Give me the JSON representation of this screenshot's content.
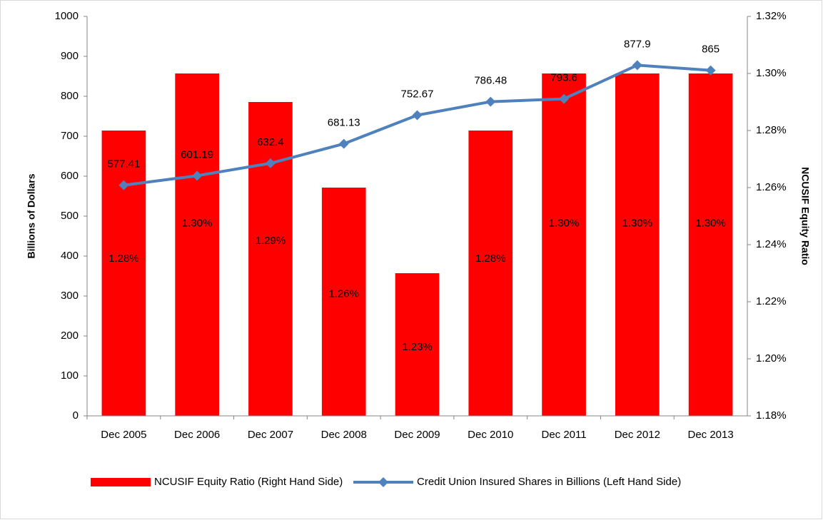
{
  "chart_data": {
    "type": "bar",
    "categories": [
      "Dec 2005",
      "Dec 2006",
      "Dec 2007",
      "Dec 2008",
      "Dec 2009",
      "Dec 2010",
      "Dec 2011",
      "Dec 2012",
      "Dec 2013"
    ],
    "series": [
      {
        "name": "NCUSIF Equity Ratio (Right Hand Side)",
        "type": "bar",
        "axis": "y2",
        "color": "#ff0000",
        "values": [
          1.28,
          1.3,
          1.29,
          1.26,
          1.23,
          1.28,
          1.3,
          1.3,
          1.3
        ],
        "value_labels": [
          "1.28%",
          "1.30%",
          "1.29%",
          "1.26%",
          "1.23%",
          "1.28%",
          "1.30%",
          "1.30%",
          "1.30%"
        ]
      },
      {
        "name": "Credit Union Insured Shares in Billions (Left Hand Side)",
        "type": "line",
        "axis": "y",
        "color": "#4f81bd",
        "values": [
          577.41,
          601.19,
          632.4,
          681.13,
          752.67,
          786.48,
          793.6,
          877.9,
          865
        ]
      }
    ],
    "ylabel": "Billions of Dollars",
    "y2label": "NCUSIF Equity Ratio",
    "ylim": [
      0,
      1000
    ],
    "yticks": [
      0,
      100,
      200,
      300,
      400,
      500,
      600,
      700,
      800,
      900,
      1000
    ],
    "y2lim": [
      1.18,
      1.32
    ],
    "y2ticks": [
      {
        "value": 1.18,
        "label": "1.18%"
      },
      {
        "value": 1.2,
        "label": "1.20%"
      },
      {
        "value": 1.22,
        "label": "1.22%"
      },
      {
        "value": 1.24,
        "label": "1.24%"
      },
      {
        "value": 1.26,
        "label": "1.26%"
      },
      {
        "value": 1.28,
        "label": "1.28%"
      },
      {
        "value": 1.3,
        "label": "1.30%"
      },
      {
        "value": 1.32,
        "label": "1.32%"
      }
    ],
    "grid": false,
    "legend": "bottom"
  }
}
